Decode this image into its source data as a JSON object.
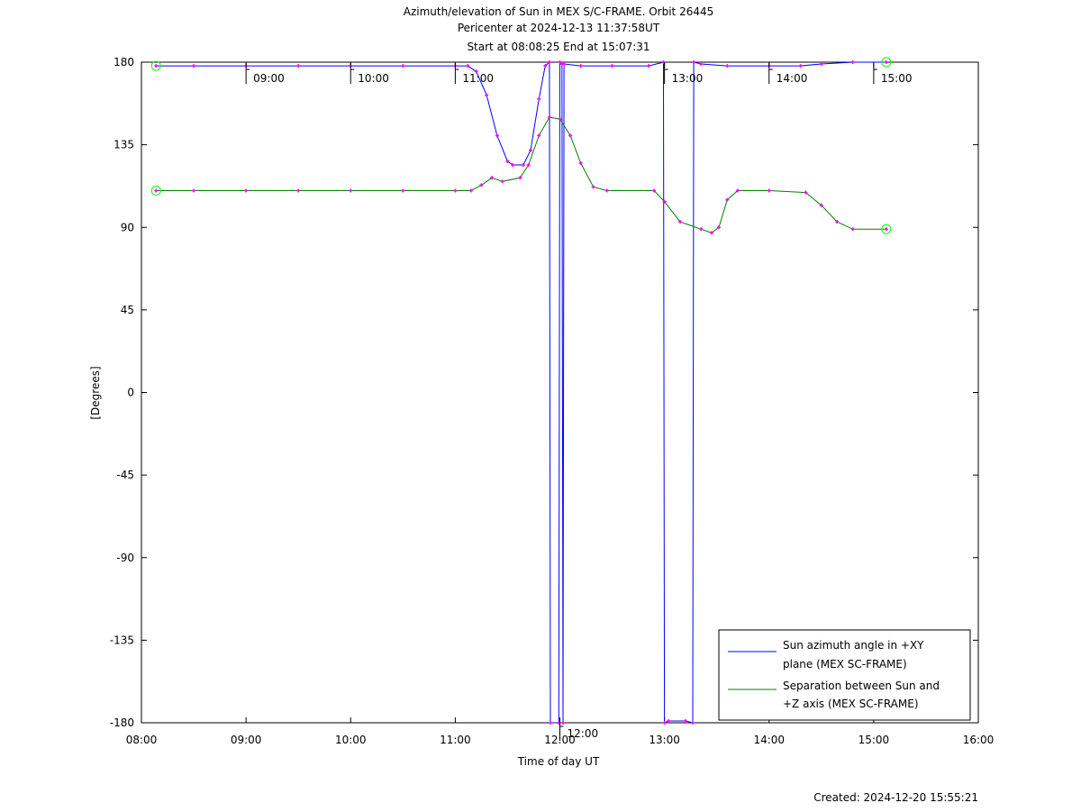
{
  "title_lines": [
    "Azimuth/elevation of Sun in MEX S/C-FRAME.  Orbit 26445",
    "Pericenter at 2024-12-13 11:37:58UT",
    "Start at 08:08:25 End at 15:07:31"
  ],
  "created": "Created: 2024-12-20 15:55:21",
  "colors": {
    "azimuth": "#0000ff",
    "separation": "#008000",
    "marker": "#ff00ff",
    "circle": "#00ff00"
  },
  "chart_data": {
    "type": "line",
    "xlabel": "Time of day UT",
    "ylabel": "[Degrees]",
    "xlim": [
      8,
      16
    ],
    "ylim": [
      -180,
      180
    ],
    "x_ticks": [
      {
        "value": 8,
        "label": "08:00"
      },
      {
        "value": 9,
        "label": "09:00"
      },
      {
        "value": 10,
        "label": "10:00"
      },
      {
        "value": 11,
        "label": "11:00"
      },
      {
        "value": 12,
        "label": "12:00"
      },
      {
        "value": 13,
        "label": "13:00"
      },
      {
        "value": 14,
        "label": "14:00"
      },
      {
        "value": 15,
        "label": "15:00"
      },
      {
        "value": 16,
        "label": "16:00"
      }
    ],
    "y_ticks": [
      {
        "value": 180,
        "label": "180"
      },
      {
        "value": 135,
        "label": "135"
      },
      {
        "value": 90,
        "label": "90"
      },
      {
        "value": 45,
        "label": "45"
      },
      {
        "value": 0,
        "label": "0"
      },
      {
        "value": -45,
        "label": "-45"
      },
      {
        "value": -90,
        "label": "-90"
      },
      {
        "value": -135,
        "label": "-135"
      },
      {
        "value": -180,
        "label": "-180"
      }
    ],
    "hour_marks": [
      {
        "x": 9.0,
        "y": 178,
        "label": "09:00"
      },
      {
        "x": 10.0,
        "y": 178,
        "label": "10:00"
      },
      {
        "x": 11.0,
        "y": 178,
        "label": "11:00"
      },
      {
        "x": 12.0,
        "y": -180,
        "label": "12:00"
      },
      {
        "x": 13.0,
        "y": 178,
        "label": "13:00"
      },
      {
        "x": 14.0,
        "y": 178,
        "label": "14:00"
      },
      {
        "x": 15.0,
        "y": 178,
        "label": "15:00"
      }
    ],
    "legend_position": "bottom-right",
    "series": [
      {
        "name": "Sun azimuth angle in +XY plane (MEX SC-FRAME)",
        "points": [
          [
            8.14,
            178
          ],
          [
            8.5,
            178
          ],
          [
            9.0,
            178
          ],
          [
            9.5,
            178
          ],
          [
            10.0,
            178
          ],
          [
            10.5,
            178
          ],
          [
            11.0,
            178
          ],
          [
            11.12,
            178
          ],
          [
            11.2,
            175
          ],
          [
            11.3,
            162
          ],
          [
            11.4,
            140
          ],
          [
            11.5,
            126
          ],
          [
            11.55,
            124
          ],
          [
            11.65,
            124
          ],
          [
            11.72,
            132
          ],
          [
            11.8,
            160
          ],
          [
            11.86,
            178
          ],
          [
            11.9,
            180
          ],
          [
            11.91,
            -180
          ],
          [
            11.99,
            -180
          ],
          [
            12.0,
            180
          ],
          [
            12.02,
            179
          ],
          [
            12.03,
            -180
          ],
          [
            12.04,
            179
          ],
          [
            12.2,
            178
          ],
          [
            12.5,
            178
          ],
          [
            12.85,
            178
          ],
          [
            12.99,
            180
          ],
          [
            13.0,
            -180
          ],
          [
            13.04,
            -179
          ],
          [
            13.2,
            -179
          ],
          [
            13.27,
            -180
          ],
          [
            13.28,
            180
          ],
          [
            13.35,
            179
          ],
          [
            13.6,
            178
          ],
          [
            14.0,
            178
          ],
          [
            14.3,
            178
          ],
          [
            14.5,
            179
          ],
          [
            14.8,
            180
          ],
          [
            15.12,
            180
          ]
        ]
      },
      {
        "name": "Separation between Sun and +Z axis (MEX SC-FRAME)",
        "points": [
          [
            8.14,
            110
          ],
          [
            8.5,
            110
          ],
          [
            9.0,
            110
          ],
          [
            9.5,
            110
          ],
          [
            10.0,
            110
          ],
          [
            10.5,
            110
          ],
          [
            11.0,
            110
          ],
          [
            11.15,
            110
          ],
          [
            11.25,
            113
          ],
          [
            11.35,
            117
          ],
          [
            11.45,
            115
          ],
          [
            11.62,
            117
          ],
          [
            11.7,
            124
          ],
          [
            11.8,
            140
          ],
          [
            11.9,
            150
          ],
          [
            12.0,
            149
          ],
          [
            12.1,
            140
          ],
          [
            12.2,
            125
          ],
          [
            12.32,
            112
          ],
          [
            12.45,
            110
          ],
          [
            12.9,
            110
          ],
          [
            13.0,
            104
          ],
          [
            13.15,
            93
          ],
          [
            13.35,
            89
          ],
          [
            13.45,
            87
          ],
          [
            13.52,
            90
          ],
          [
            13.6,
            105
          ],
          [
            13.7,
            110
          ],
          [
            14.0,
            110
          ],
          [
            14.35,
            109
          ],
          [
            14.5,
            102
          ],
          [
            14.65,
            93
          ],
          [
            14.8,
            89
          ],
          [
            15.12,
            89
          ]
        ]
      }
    ]
  }
}
